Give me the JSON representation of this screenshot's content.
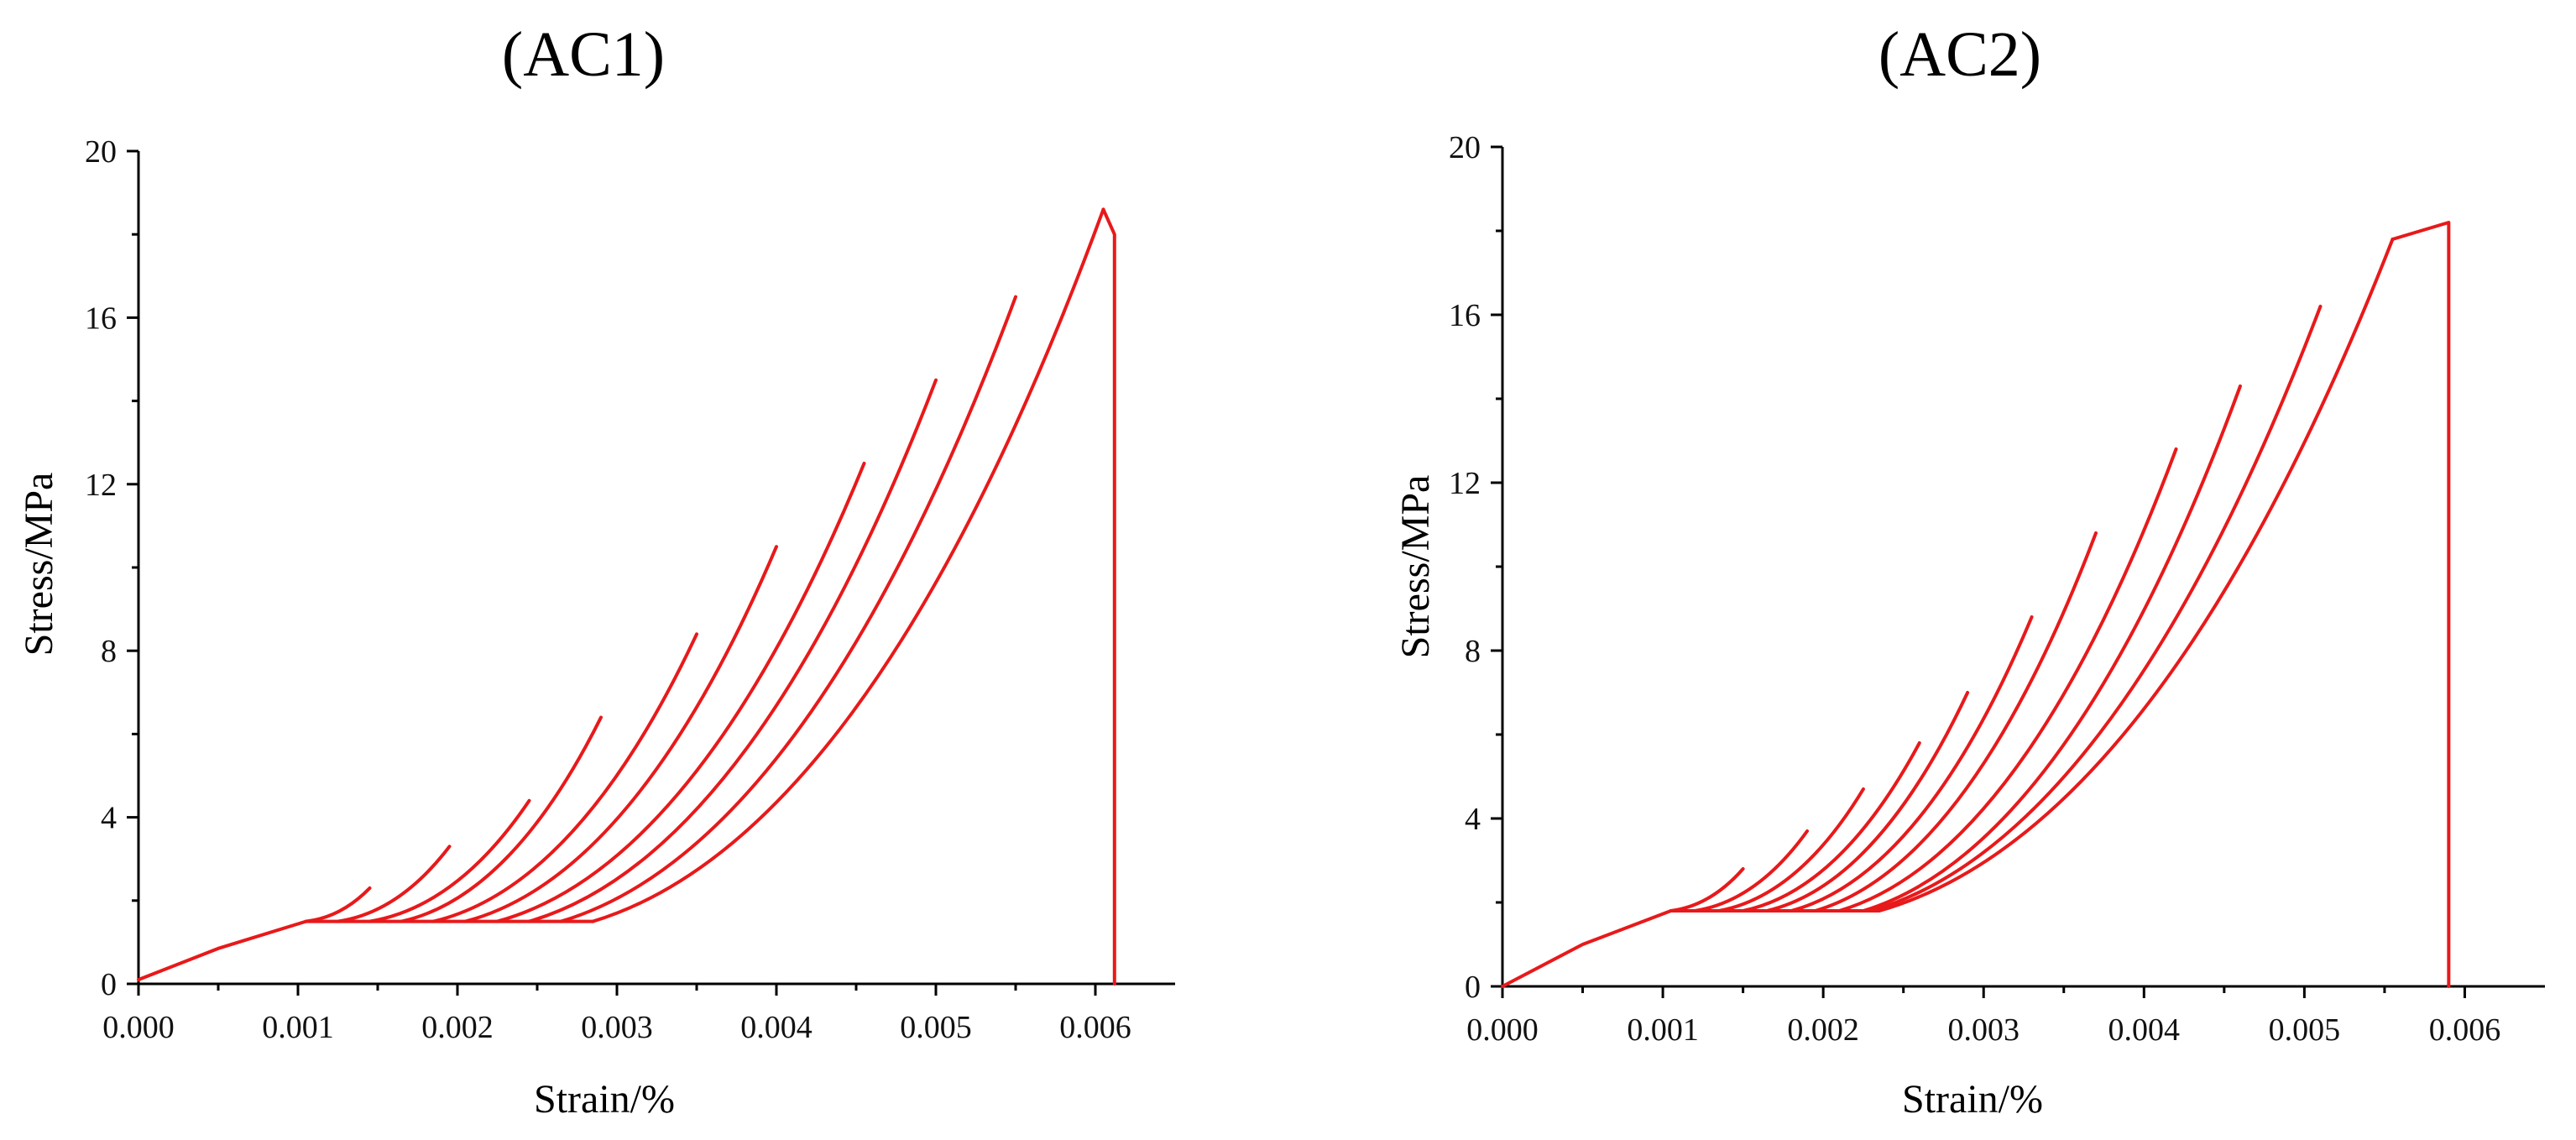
{
  "chart_data": [
    {
      "type": "line",
      "title": "(AC1)",
      "xlabel": "Strain/%",
      "ylabel": "Stress/MPa",
      "xlim": [
        0,
        0.0065
      ],
      "ylim": [
        0,
        20
      ],
      "xticks": [
        "0.000",
        "0.001",
        "0.002",
        "0.003",
        "0.004",
        "0.005",
        "0.006"
      ],
      "yticks": [
        "0",
        "4",
        "8",
        "12",
        "16",
        "20"
      ],
      "grid": false,
      "line_color": "#e8191a",
      "series": [
        {
          "x": [
            0.0,
            0.0005,
            0.00105
          ],
          "y": [
            0.1,
            0.85,
            1.5
          ]
        },
        {
          "x": [
            0.00105,
            0.00145
          ],
          "y": [
            1.5,
            2.3
          ]
        },
        {
          "x": [
            0.00125,
            0.00195
          ],
          "y": [
            1.5,
            3.3
          ]
        },
        {
          "x": [
            0.00145,
            0.00245
          ],
          "y": [
            1.5,
            4.4
          ]
        },
        {
          "x": [
            0.00165,
            0.0029
          ],
          "y": [
            1.5,
            6.4
          ]
        },
        {
          "x": [
            0.00185,
            0.0035
          ],
          "y": [
            1.5,
            8.4
          ]
        },
        {
          "x": [
            0.00205,
            0.004
          ],
          "y": [
            1.5,
            10.5
          ]
        },
        {
          "x": [
            0.00225,
            0.00455
          ],
          "y": [
            1.5,
            12.5
          ]
        },
        {
          "x": [
            0.00245,
            0.005
          ],
          "y": [
            1.5,
            14.5
          ]
        },
        {
          "x": [
            0.00265,
            0.0055
          ],
          "y": [
            1.5,
            16.5
          ]
        },
        {
          "x": [
            0.00285,
            0.00605
          ],
          "y": [
            1.5,
            18.6
          ]
        },
        {
          "x": [
            0.00105,
            0.00285
          ],
          "y": [
            1.5,
            1.5
          ]
        },
        {
          "x": [
            0.00605,
            0.00612,
            0.00612
          ],
          "y": [
            18.6,
            18.0,
            0.0
          ]
        }
      ]
    },
    {
      "type": "line",
      "title": "(AC2)",
      "xlabel": "Strain/%",
      "ylabel": "Stress/MPa",
      "xlim": [
        0,
        0.0065
      ],
      "ylim": [
        0,
        20
      ],
      "xticks": [
        "0.000",
        "0.001",
        "0.002",
        "0.003",
        "0.004",
        "0.005",
        "0.006"
      ],
      "yticks": [
        "0",
        "4",
        "8",
        "12",
        "16",
        "20"
      ],
      "grid": false,
      "line_color": "#e8191a",
      "series": [
        {
          "x": [
            0.0,
            0.0005,
            0.00105
          ],
          "y": [
            0.0,
            1.0,
            1.8
          ]
        },
        {
          "x": [
            0.00105,
            0.0015
          ],
          "y": [
            1.8,
            2.8
          ]
        },
        {
          "x": [
            0.0012,
            0.0019
          ],
          "y": [
            1.8,
            3.7
          ]
        },
        {
          "x": [
            0.00135,
            0.00225
          ],
          "y": [
            1.8,
            4.7
          ]
        },
        {
          "x": [
            0.0015,
            0.0026
          ],
          "y": [
            1.8,
            5.8
          ]
        },
        {
          "x": [
            0.00165,
            0.0029
          ],
          "y": [
            1.8,
            7.0
          ]
        },
        {
          "x": [
            0.0018,
            0.0033
          ],
          "y": [
            1.8,
            8.8
          ]
        },
        {
          "x": [
            0.00195,
            0.0037
          ],
          "y": [
            1.8,
            10.8
          ]
        },
        {
          "x": [
            0.0021,
            0.0042
          ],
          "y": [
            1.8,
            12.8
          ]
        },
        {
          "x": [
            0.00225,
            0.0046
          ],
          "y": [
            1.8,
            14.3
          ]
        },
        {
          "x": [
            0.0023,
            0.0051
          ],
          "y": [
            1.8,
            16.2
          ]
        },
        {
          "x": [
            0.00235,
            0.00555
          ],
          "y": [
            1.8,
            17.8
          ]
        },
        {
          "x": [
            0.00105,
            0.00235
          ],
          "y": [
            1.8,
            1.8
          ]
        },
        {
          "x": [
            0.00555,
            0.0059,
            0.0059
          ],
          "y": [
            17.8,
            18.2,
            0.0
          ]
        }
      ]
    }
  ]
}
